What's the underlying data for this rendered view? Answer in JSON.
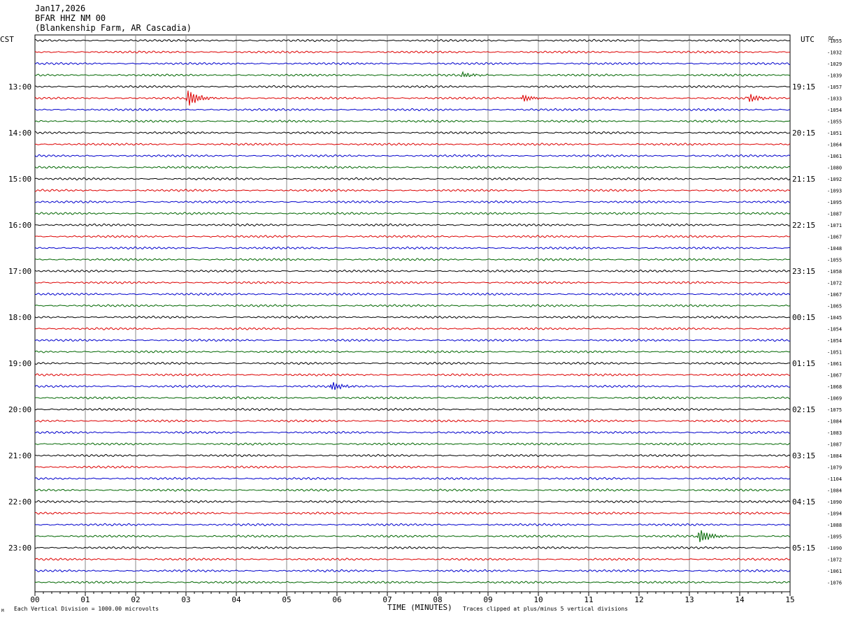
{
  "header": {
    "date": "Jan17,2026",
    "station": "BFAR HHZ NM 00",
    "location": "(Blankenship Farm, AR Cascadia)"
  },
  "left_zone": "CST",
  "right_zone": "UTC",
  "dc_label": "DC",
  "footer": {
    "scale_note": "Each Vertical Division = 1000.00 microvolts",
    "xlabel": "TIME (MINUTES)",
    "clip_note": "Traces clipped at plus/minus 5 vertical divisions",
    "corner_mark": "M"
  },
  "colors": {
    "trace_cycle": [
      "#000000",
      "#dd0000",
      "#0000cc",
      "#006600"
    ],
    "grid": "#888888"
  },
  "chart_data": {
    "type": "line",
    "title": "Jan17,2026 BFAR HHZ NM 00",
    "xlabel": "TIME (MINUTES)",
    "ylabel": "",
    "x_ticks": [
      "00",
      "01",
      "02",
      "03",
      "04",
      "05",
      "06",
      "07",
      "08",
      "09",
      "10",
      "11",
      "12",
      "13",
      "14",
      "15"
    ],
    "xlim": [
      0,
      15
    ],
    "row_minutes": 15,
    "cst_hour_labels": [
      "13:00",
      "14:00",
      "15:00",
      "16:00",
      "17:00",
      "18:00",
      "19:00",
      "20:00",
      "21:00",
      "22:00",
      "23:00"
    ],
    "utc_hour_labels": [
      "19:15",
      "20:15",
      "21:15",
      "22:15",
      "23:15",
      "00:15",
      "01:15",
      "02:15",
      "03:15",
      "04:15",
      "05:15"
    ],
    "hour_label_first_row": 4,
    "dc_offsets": [
      -1055,
      -1032,
      -1029,
      -1039,
      -1057,
      -1033,
      -1054,
      -1055,
      -1051,
      -1064,
      -1061,
      -1080,
      -1092,
      -1093,
      -1095,
      -1087,
      -1071,
      -1067,
      -1048,
      -1055,
      -1058,
      -1072,
      -1067,
      -1065,
      -1045,
      -1054,
      -1054,
      -1051,
      -1061,
      -1067,
      -1068,
      -1069,
      -1075,
      -1084,
      -1083,
      -1087,
      -1084,
      -1079,
      -1104,
      -1084,
      -1090,
      -1094,
      -1088,
      -1095,
      -1090,
      -1072,
      -1061,
      -1076
    ],
    "events": [
      {
        "row": 5,
        "minute": 3.05,
        "amp": 1.9
      },
      {
        "row": 5,
        "minute": 9.7,
        "amp": 0.8
      },
      {
        "row": 5,
        "minute": 14.2,
        "amp": 0.9
      },
      {
        "row": 30,
        "minute": 5.9,
        "amp": 0.9
      },
      {
        "row": 43,
        "minute": 13.2,
        "amp": 1.6
      },
      {
        "row": 3,
        "minute": 8.5,
        "amp": 0.6
      }
    ]
  }
}
